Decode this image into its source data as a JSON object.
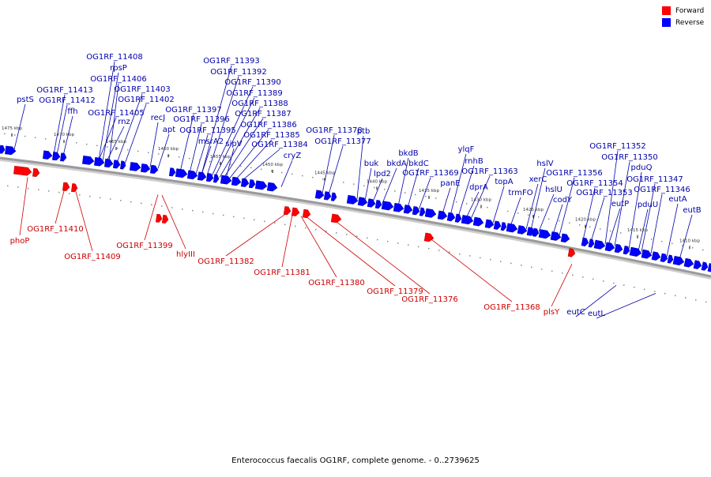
{
  "legend": [
    {
      "label": "Forward",
      "color": "#ff0000"
    },
    {
      "label": "Reverse",
      "color": "#0000ff"
    }
  ],
  "footer": "Enterococcus faecalis OG1RF, complete genome. - 0..2739625",
  "colors": {
    "forward": "#ff0000",
    "forward_dark": "#c00000",
    "reverse": "#0000ff",
    "reverse_dark": "#0000b0",
    "backbone": "#9a9a9a",
    "forward_label": "#cc0000",
    "reverse_label": "#0000aa"
  },
  "scale_labels": [
    "1475 kbp",
    "1470 kbp",
    "1465 kbp",
    "1460 kbp",
    "1455 kbp",
    "1450 kbp",
    "1445 kbp",
    "1440 kbp",
    "1435 kbp",
    "1430 kbp",
    "1425 kbp",
    "1420 kbp",
    "1415 kbp",
    "1410 kbp"
  ],
  "reverse_labels": [
    "OG1RF_11408",
    "rpsP",
    "OG1RF_11406",
    "OG1RF_11403",
    "OG1RF_11402",
    "OG1RF_11405",
    "rnz",
    "OG1RF_11413",
    "OG1RF_11412",
    "ffh",
    "pstS",
    "recJ",
    "apt",
    "OG1RF_11393",
    "OG1RF_11392",
    "OG1RF_11390",
    "OG1RF_11389",
    "OG1RF_11388",
    "OG1RF_11387",
    "OG1RF_11386",
    "OG1RF_11385",
    "OG1RF_11384",
    "OG1RF_11397",
    "OG1RF_11396",
    "OG1RF_11395",
    "msrA2",
    "sipV",
    "cryZ",
    "OG1RF_11378",
    "OG1RF_11377",
    "ptb",
    "buk",
    "lpd2",
    "bkdA",
    "bkdB",
    "bkdC",
    "OG1RF_11369",
    "ylqF",
    "rnhB",
    "OG1RF_11363",
    "dprA",
    "panE",
    "topA",
    "trmFO",
    "hslV",
    "xerC",
    "hslU",
    "OG1RF_11356",
    "codY",
    "OG1RF_11354",
    "OG1RF_11353",
    "eutP",
    "OG1RF_11352",
    "OG1RF_11350",
    "pduQ",
    "OG1RF_11347",
    "pduU",
    "OG1RF_11346",
    "eutA",
    "eutB",
    "eutC",
    "eutL"
  ],
  "forward_labels": [
    "phoP",
    "OG1RF_11410",
    "OG1RF_11409",
    "OG1RF_11399",
    "hlyIII",
    "OG1RF_11382",
    "OG1RF_11381",
    "OG1RF_11380",
    "OG1RF_11379",
    "OG1RF_11376",
    "OG1RF_11368",
    "plsY"
  ]
}
